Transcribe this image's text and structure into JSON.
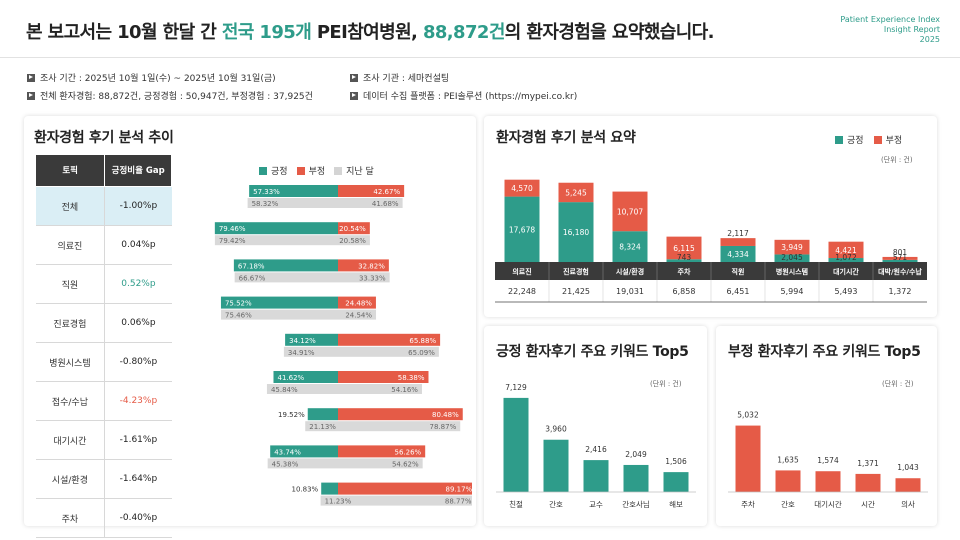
{
  "header": {
    "title_pre": "본 보고서는 10월 한달 간 ",
    "title_hl1": "전국 195개",
    "title_mid": " PEI참여병원, ",
    "title_hl2": "88,872건",
    "title_post": "의 환자경험을 요약했습니다.",
    "brand_line1": "Patient Experience Index",
    "brand_line2": "Insight Report",
    "brand_line3": "2025"
  },
  "info": {
    "period": "조사 기간 : 2025년 10월 1일(수) ~ 2025년 10월 31일(금)",
    "org": "조사 기관 : 세마컨설팅",
    "totals": "전체 환자경험: 88,872건, 긍정경험 : 50,947건, 부정경험 : 37,925건",
    "platform": "데이터 수집 플랫폼 : PEI솔루션 (https://mypei.co.kr)"
  },
  "colors": {
    "positive": "#2e9c8a",
    "negative": "#e55b47",
    "previous": "#d9d9d9",
    "header_dark": "#3a3a3a",
    "selected_row": "#daeef5"
  },
  "trend": {
    "title": "환자경험 후기 분석 추이",
    "col_topic": "토픽",
    "col_gap": "긍정비율 Gap",
    "legend": {
      "positive": "긍정",
      "negative": "부정",
      "previous": "지난 달"
    },
    "rows": [
      {
        "topic": "전체",
        "gap": "-1.00%p",
        "gap_color": "#222222",
        "pos": 57.33,
        "neg": 42.67,
        "pos_label": "57.33%",
        "neg_label": "42.67%",
        "prev_pos": 58.32,
        "prev_pos_label": "58.32%",
        "prev_neg_label": "41.68%"
      },
      {
        "topic": "의료진",
        "gap": "0.04%p",
        "gap_color": "#222222",
        "pos": 79.46,
        "neg": 20.54,
        "pos_label": "79.46%",
        "neg_label": "20.54%",
        "prev_pos": 79.42,
        "prev_pos_label": "79.42%",
        "prev_neg_label": "20.58%"
      },
      {
        "topic": "직원",
        "gap": "0.52%p",
        "gap_color": "#2e9c8a",
        "pos": 67.18,
        "neg": 32.82,
        "pos_label": "67.18%",
        "neg_label": "32.82%",
        "prev_pos": 66.67,
        "prev_pos_label": "66.67%",
        "prev_neg_label": "33.33%"
      },
      {
        "topic": "진료경험",
        "gap": "0.06%p",
        "gap_color": "#222222",
        "pos": 75.52,
        "neg": 24.48,
        "pos_label": "75.52%",
        "neg_label": "24.48%",
        "prev_pos": 75.46,
        "prev_pos_label": "75.46%",
        "prev_neg_label": "24.54%"
      },
      {
        "topic": "병원시스템",
        "gap": "-0.80%p",
        "gap_color": "#222222",
        "pos": 34.12,
        "neg": 65.88,
        "pos_label": "34.12%",
        "neg_label": "65.88%",
        "prev_pos": 34.91,
        "prev_pos_label": "34.91%",
        "prev_neg_label": "65.09%"
      },
      {
        "topic": "접수/수납",
        "gap": "-4.23%p",
        "gap_color": "#e55b47",
        "pos": 41.62,
        "neg": 58.38,
        "pos_label": "41.62%",
        "neg_label": "58.38%",
        "prev_pos": 45.84,
        "prev_pos_label": "45.84%",
        "prev_neg_label": "54.16%"
      },
      {
        "topic": "대기시간",
        "gap": "-1.61%p",
        "gap_color": "#222222",
        "pos": 19.52,
        "neg": 80.48,
        "pos_label": "19.52%",
        "neg_label": "80.48%",
        "prev_pos": 21.13,
        "prev_pos_label": "21.13%",
        "prev_neg_label": "78.87%"
      },
      {
        "topic": "시설/환경",
        "gap": "-1.64%p",
        "gap_color": "#222222",
        "pos": 43.74,
        "neg": 56.26,
        "pos_label": "43.74%",
        "neg_label": "56.26%",
        "prev_pos": 45.38,
        "prev_pos_label": "45.38%",
        "prev_neg_label": "54.62%"
      },
      {
        "topic": "주차",
        "gap": "-0.40%p",
        "gap_color": "#222222",
        "pos": 10.83,
        "neg": 89.17,
        "pos_label": "10.83%",
        "neg_label": "89.17%",
        "prev_pos": 11.23,
        "prev_pos_label": "11.23%",
        "prev_neg_label": "88.77%"
      }
    ]
  },
  "summary": {
    "title": "환자경험 후기 분석 요약",
    "legend_pos": "긍정",
    "legend_neg": "부정",
    "unit": "(단위 : 건)"
  },
  "keywords_pos": {
    "title": "긍정 환자후기 주요 키워드 Top5",
    "unit": "(단위 : 건)"
  },
  "keywords_neg": {
    "title": "부정 환자후기 주요 키워드 Top5",
    "unit": "(단위 : 건)"
  },
  "chart_data": [
    {
      "type": "bar",
      "title": "환자경험 후기 분석 추이",
      "categories": [
        "전체",
        "의료진",
        "직원",
        "진료경험",
        "병원시스템",
        "접수/수납",
        "대기시간",
        "시설/환경",
        "주차"
      ],
      "series": [
        {
          "name": "긍정",
          "values": [
            57.33,
            79.46,
            67.18,
            75.52,
            34.12,
            41.62,
            19.52,
            43.74,
            10.83
          ]
        },
        {
          "name": "부정",
          "values": [
            42.67,
            20.54,
            32.82,
            24.48,
            65.88,
            58.38,
            80.48,
            56.26,
            89.17
          ]
        },
        {
          "name": "지난 달",
          "values": [
            58.32,
            79.42,
            66.67,
            75.46,
            34.91,
            45.84,
            21.13,
            45.38,
            11.23
          ]
        }
      ]
    },
    {
      "type": "bar",
      "title": "환자경험 후기 분석 요약",
      "categories": [
        "의료진",
        "진료경험",
        "시설/환경",
        "주차",
        "직원",
        "병원시스템",
        "대기시간",
        "대박/원수/수납"
      ],
      "series": [
        {
          "name": "긍정",
          "values": [
            17678,
            16180,
            8324,
            743,
            4334,
            2045,
            1072,
            571
          ],
          "labels": [
            "17,678",
            "16,180",
            "8,324",
            "743",
            "4,334",
            "2,045",
            "1,072",
            "571"
          ]
        },
        {
          "name": "부정",
          "values": [
            4570,
            5245,
            10707,
            6115,
            2117,
            3949,
            4421,
            801
          ],
          "labels": [
            "4,570",
            "5,245",
            "10,707",
            "6,115",
            "2,117",
            "3,949",
            "4,421",
            "801"
          ]
        }
      ],
      "totals": [
        "22,248",
        "21,425",
        "19,031",
        "6,858",
        "6,451",
        "5,994",
        "5,493",
        "1,372"
      ],
      "unit": "(단위 : 건)"
    },
    {
      "type": "bar",
      "title": "긍정 환자후기 주요 키워드 Top5",
      "categories": [
        "친절",
        "간호",
        "교수",
        "간호사님",
        "해보"
      ],
      "values": [
        7129,
        3960,
        2416,
        2049,
        1506
      ],
      "labels": [
        "7,129",
        "3,960",
        "2,416",
        "2,049",
        "1,506"
      ],
      "unit": "(단위 : 건)"
    },
    {
      "type": "bar",
      "title": "부정 환자후기 주요 키워드 Top5",
      "categories": [
        "주차",
        "간호",
        "대기시간",
        "시간",
        "의사"
      ],
      "values": [
        5032,
        1635,
        1574,
        1371,
        1043
      ],
      "labels": [
        "5,032",
        "1,635",
        "1,574",
        "1,371",
        "1,043"
      ],
      "unit": "(단위 : 건)"
    }
  ]
}
